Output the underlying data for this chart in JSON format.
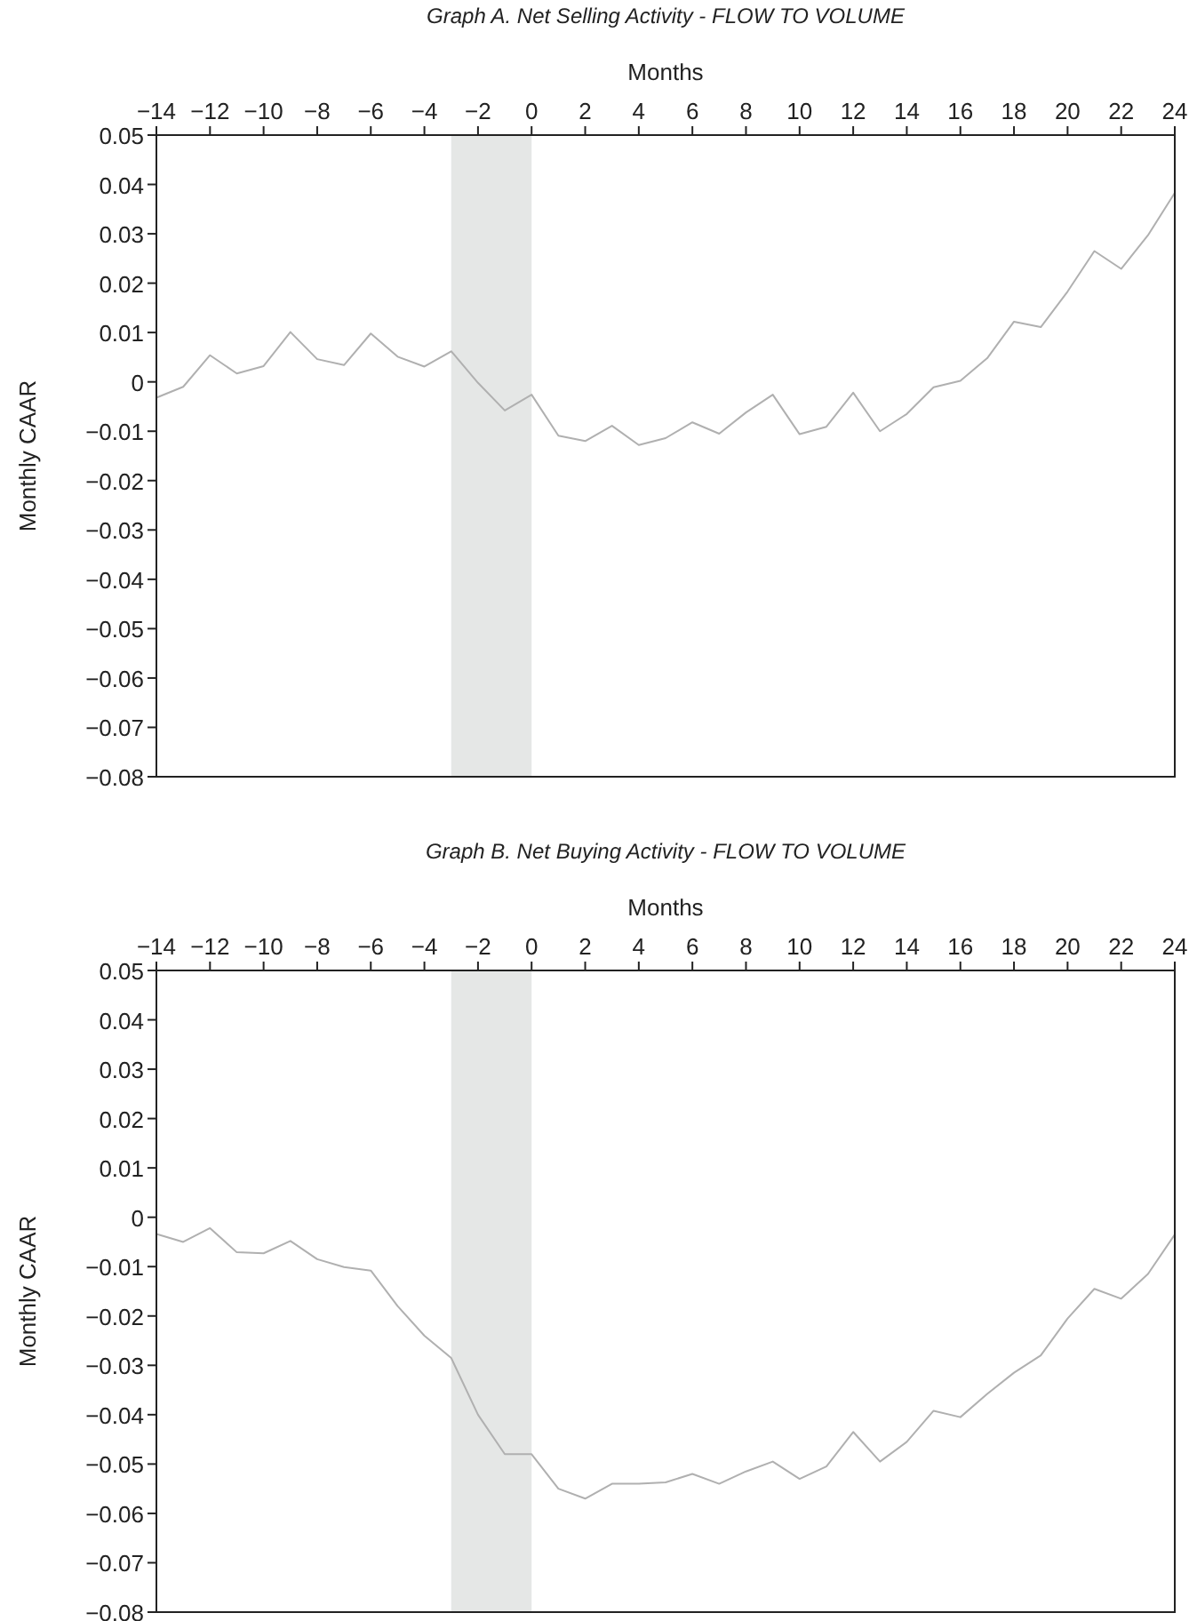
{
  "chart_data": [
    {
      "type": "line",
      "title": "Graph A. Net Selling Activity - FLOW TO VOLUME",
      "xlabel": "Months",
      "ylabel": "Monthly CAAR",
      "x": [
        -14,
        -13,
        -12,
        -11,
        -10,
        -9,
        -8,
        -7,
        -6,
        -5,
        -4,
        -3,
        -2,
        -1,
        0,
        1,
        2,
        3,
        4,
        5,
        6,
        7,
        8,
        9,
        10,
        11,
        12,
        13,
        14,
        15,
        16,
        17,
        18,
        19,
        20,
        21,
        22,
        23,
        24
      ],
      "series": [
        {
          "color": "#b0b0b0",
          "values": [
            -0.0032,
            -0.001,
            0.0054,
            0.0017,
            0.0032,
            0.0101,
            0.0046,
            0.0034,
            0.0098,
            0.0051,
            0.0031,
            0.0062,
            -0.0002,
            -0.0058,
            -0.0026,
            -0.0109,
            -0.012,
            -0.0089,
            -0.0128,
            -0.0114,
            -0.0082,
            -0.0105,
            -0.0062,
            -0.0026,
            -0.0106,
            -0.0091,
            -0.0022,
            -0.01,
            -0.0065,
            -0.0011,
            0.0002,
            0.0048,
            0.0122,
            0.0111,
            0.0183,
            0.0265,
            0.0229,
            0.0297,
            0.0383
          ]
        }
      ],
      "xlim": [
        -14,
        24
      ],
      "xticks": [
        {
          "value": -14,
          "label": "−14"
        },
        {
          "value": -12,
          "label": "−12"
        },
        {
          "value": -10,
          "label": "−10"
        },
        {
          "value": -8,
          "label": "−8"
        },
        {
          "value": -6,
          "label": "−6"
        },
        {
          "value": -4,
          "label": "−4"
        },
        {
          "value": -2,
          "label": "−2"
        },
        0,
        2,
        4,
        6,
        8,
        10,
        12,
        14,
        16,
        18,
        20,
        22,
        24
      ],
      "ylim": [
        -0.08,
        0.05
      ],
      "yticks": [
        {
          "value": -0.08,
          "label": "−0.08"
        },
        {
          "value": -0.07,
          "label": "−0.07"
        },
        {
          "value": -0.06,
          "label": "−0.06"
        },
        {
          "value": -0.05,
          "label": "−0.05"
        },
        {
          "value": -0.04,
          "label": "−0.04"
        },
        {
          "value": -0.03,
          "label": "−0.03"
        },
        {
          "value": -0.02,
          "label": "−0.02"
        },
        {
          "value": -0.01,
          "label": "−0.01"
        },
        0,
        0.01,
        0.02,
        0.03,
        0.04,
        0.05
      ],
      "bands": [
        {
          "axis": "x",
          "from": -3,
          "to": 0,
          "color": "#e5e7e6"
        }
      ],
      "grid": false,
      "marker": "none",
      "line_style": "solid"
    },
    {
      "type": "line",
      "title": "Graph B. Net Buying Activity - FLOW TO VOLUME",
      "xlabel": "Months",
      "ylabel": "Monthly CAAR",
      "x": [
        -14,
        -13,
        -12,
        -11,
        -10,
        -9,
        -8,
        -7,
        -6,
        -5,
        -4,
        -3,
        -2,
        -1,
        0,
        1,
        2,
        3,
        4,
        5,
        6,
        7,
        8,
        9,
        10,
        11,
        12,
        13,
        14,
        15,
        16,
        17,
        18,
        19,
        20,
        21,
        22,
        23,
        24
      ],
      "series": [
        {
          "color": "#b0b0b0",
          "values": [
            -0.0034,
            -0.005,
            -0.0022,
            -0.0071,
            -0.0073,
            -0.0048,
            -0.0085,
            -0.0101,
            -0.0108,
            -0.018,
            -0.024,
            -0.0285,
            -0.04,
            -0.048,
            -0.048,
            -0.055,
            -0.057,
            -0.054,
            -0.054,
            -0.0537,
            -0.052,
            -0.054,
            -0.0515,
            -0.0495,
            -0.053,
            -0.0505,
            -0.0435,
            -0.0495,
            -0.0455,
            -0.0392,
            -0.0405,
            -0.0358,
            -0.0315,
            -0.028,
            -0.0205,
            -0.0145,
            -0.0165,
            -0.0115,
            -0.0035
          ]
        }
      ],
      "xlim": [
        -14,
        24
      ],
      "xticks": [
        {
          "value": -14,
          "label": "−14"
        },
        {
          "value": -12,
          "label": "−12"
        },
        {
          "value": -10,
          "label": "−10"
        },
        {
          "value": -8,
          "label": "−8"
        },
        {
          "value": -6,
          "label": "−6"
        },
        {
          "value": -4,
          "label": "−4"
        },
        {
          "value": -2,
          "label": "−2"
        },
        0,
        2,
        4,
        6,
        8,
        10,
        12,
        14,
        16,
        18,
        20,
        22,
        24
      ],
      "ylim": [
        -0.08,
        0.05
      ],
      "yticks": [
        {
          "value": -0.08,
          "label": "−0.08"
        },
        {
          "value": -0.07,
          "label": "−0.07"
        },
        {
          "value": -0.06,
          "label": "−0.06"
        },
        {
          "value": -0.05,
          "label": "−0.05"
        },
        {
          "value": -0.04,
          "label": "−0.04"
        },
        {
          "value": -0.03,
          "label": "−0.03"
        },
        {
          "value": -0.02,
          "label": "−0.02"
        },
        {
          "value": -0.01,
          "label": "−0.01"
        },
        0,
        0.01,
        0.02,
        0.03,
        0.04,
        0.05
      ],
      "bands": [
        {
          "axis": "x",
          "from": -3,
          "to": 0,
          "color": "#e5e7e6"
        }
      ],
      "grid": false,
      "marker": "none",
      "line_style": "solid"
    }
  ]
}
